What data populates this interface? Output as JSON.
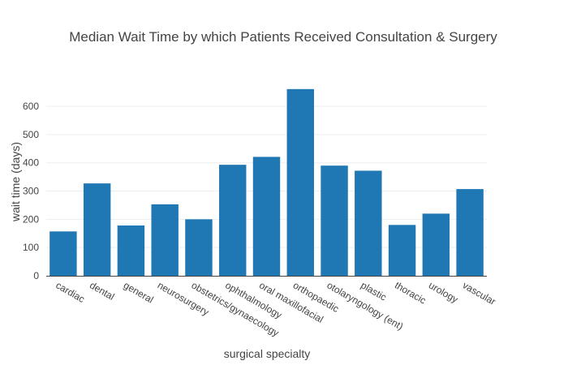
{
  "chart_data": {
    "type": "bar",
    "title": "Median Wait Time by which Patients Received Consultation & Surgery",
    "xlabel": "surgical specialty",
    "ylabel": "wait time (days)",
    "categories": [
      "cardiac",
      "dental",
      "general",
      "neurosurgery",
      "obstetrics/gynaecology",
      "ophthalmology",
      "oral maxillofacial",
      "orthopaedic",
      "otolaryngology (ent)",
      "plastic",
      "thoracic",
      "urology",
      "vascular"
    ],
    "values": [
      157,
      327,
      178,
      253,
      200,
      393,
      421,
      661,
      390,
      372,
      180,
      220,
      307
    ],
    "ylim": [
      0,
      695
    ],
    "yticks": [
      0,
      100,
      200,
      300,
      400,
      500,
      600
    ],
    "grid": true,
    "legend": "none",
    "bar_color": "#1f77b4"
  }
}
